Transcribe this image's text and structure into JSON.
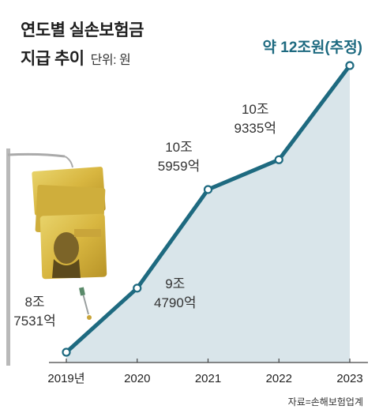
{
  "title_line1": "연도별 실손보험금",
  "title_line2": "지급 추이",
  "unit": "단위: 원",
  "source": "자료=손해보험업계",
  "colors": {
    "line": "#1e6a80",
    "area": "#d9e5ea",
    "marker_fill": "#ffffff",
    "axis": "#444444",
    "emphasis": "#1e6a80",
    "text": "#333333"
  },
  "chart_data": {
    "type": "line",
    "categories": [
      "2019년",
      "2020",
      "2021",
      "2022",
      "2023"
    ],
    "values_krw_trillion": [
      8.7531,
      9.479,
      10.5959,
      10.9335,
      12.0
    ],
    "data_labels": [
      [
        "8조",
        "7531억"
      ],
      [
        "9조",
        "4790억"
      ],
      [
        "10조",
        "5959억"
      ],
      [
        "10조",
        "9335억"
      ],
      [
        "약 12조원(추정)"
      ]
    ],
    "ylim": [
      8.7531,
      12.0
    ],
    "grid": false,
    "legend": "none",
    "area_fill": true
  }
}
